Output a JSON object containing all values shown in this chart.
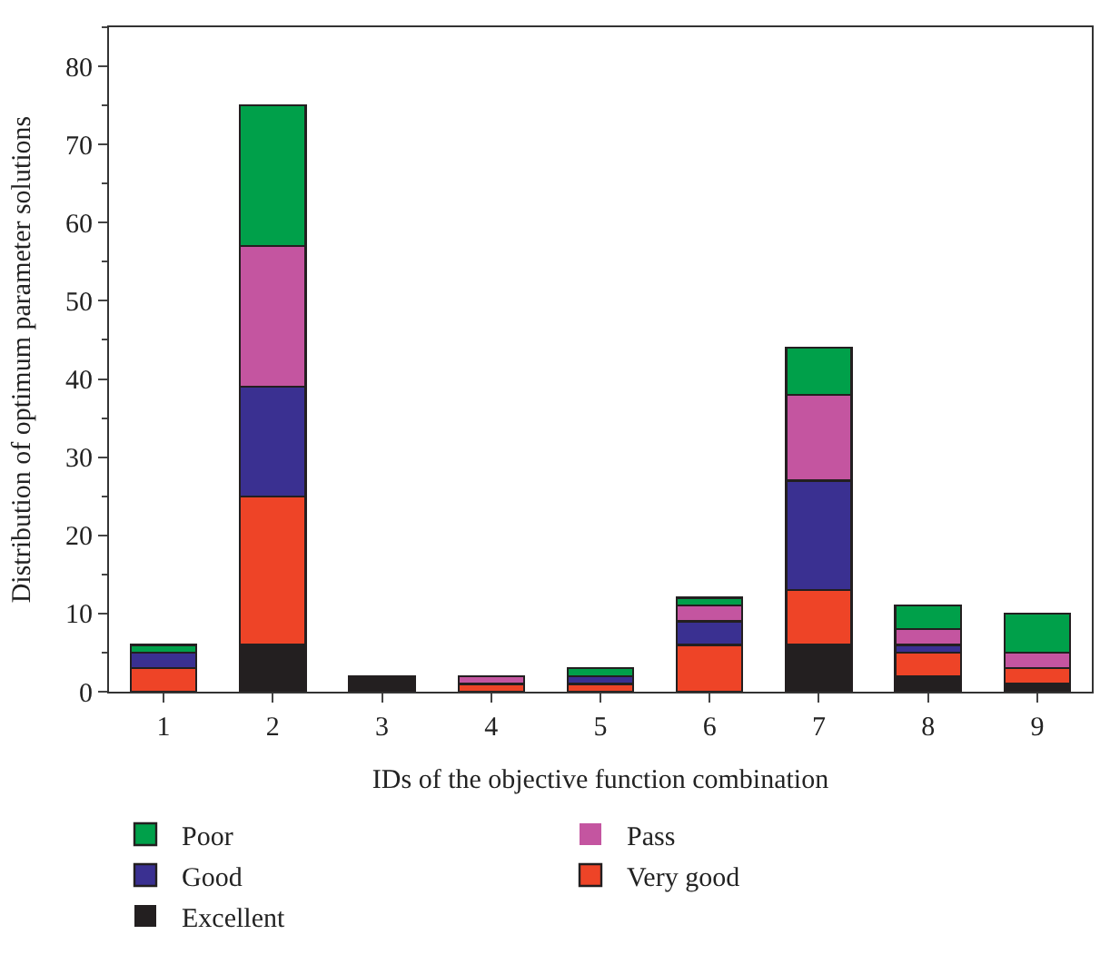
{
  "chart_data": {
    "type": "bar",
    "stacked": true,
    "xlabel": "IDs of the objective function combination",
    "ylabel": "Distribution of optimum parameter solutions",
    "categories": [
      "1",
      "2",
      "3",
      "4",
      "5",
      "6",
      "7",
      "8",
      "9"
    ],
    "series": [
      {
        "name": "Excellent",
        "color": "#231f20",
        "values": [
          0,
          6,
          2,
          0,
          0,
          0,
          6,
          2,
          1
        ]
      },
      {
        "name": "Very good",
        "color": "#ee4427",
        "values": [
          3,
          19,
          0,
          1,
          1,
          6,
          7,
          3,
          2
        ]
      },
      {
        "name": "Good",
        "color": "#3a3091",
        "values": [
          2,
          14,
          0,
          0,
          1,
          3,
          14,
          1,
          0
        ]
      },
      {
        "name": "Pass",
        "color": "#c455a0",
        "values": [
          0,
          18,
          0,
          1,
          0,
          2,
          11,
          2,
          2
        ]
      },
      {
        "name": "Poor",
        "color": "#00a04a",
        "values": [
          1,
          18,
          0,
          0,
          1,
          1,
          6,
          3,
          5
        ]
      }
    ],
    "ylim": [
      0,
      85
    ],
    "yticks": [
      0,
      10,
      20,
      30,
      40,
      50,
      60,
      70,
      80
    ],
    "legend": "bottom"
  }
}
